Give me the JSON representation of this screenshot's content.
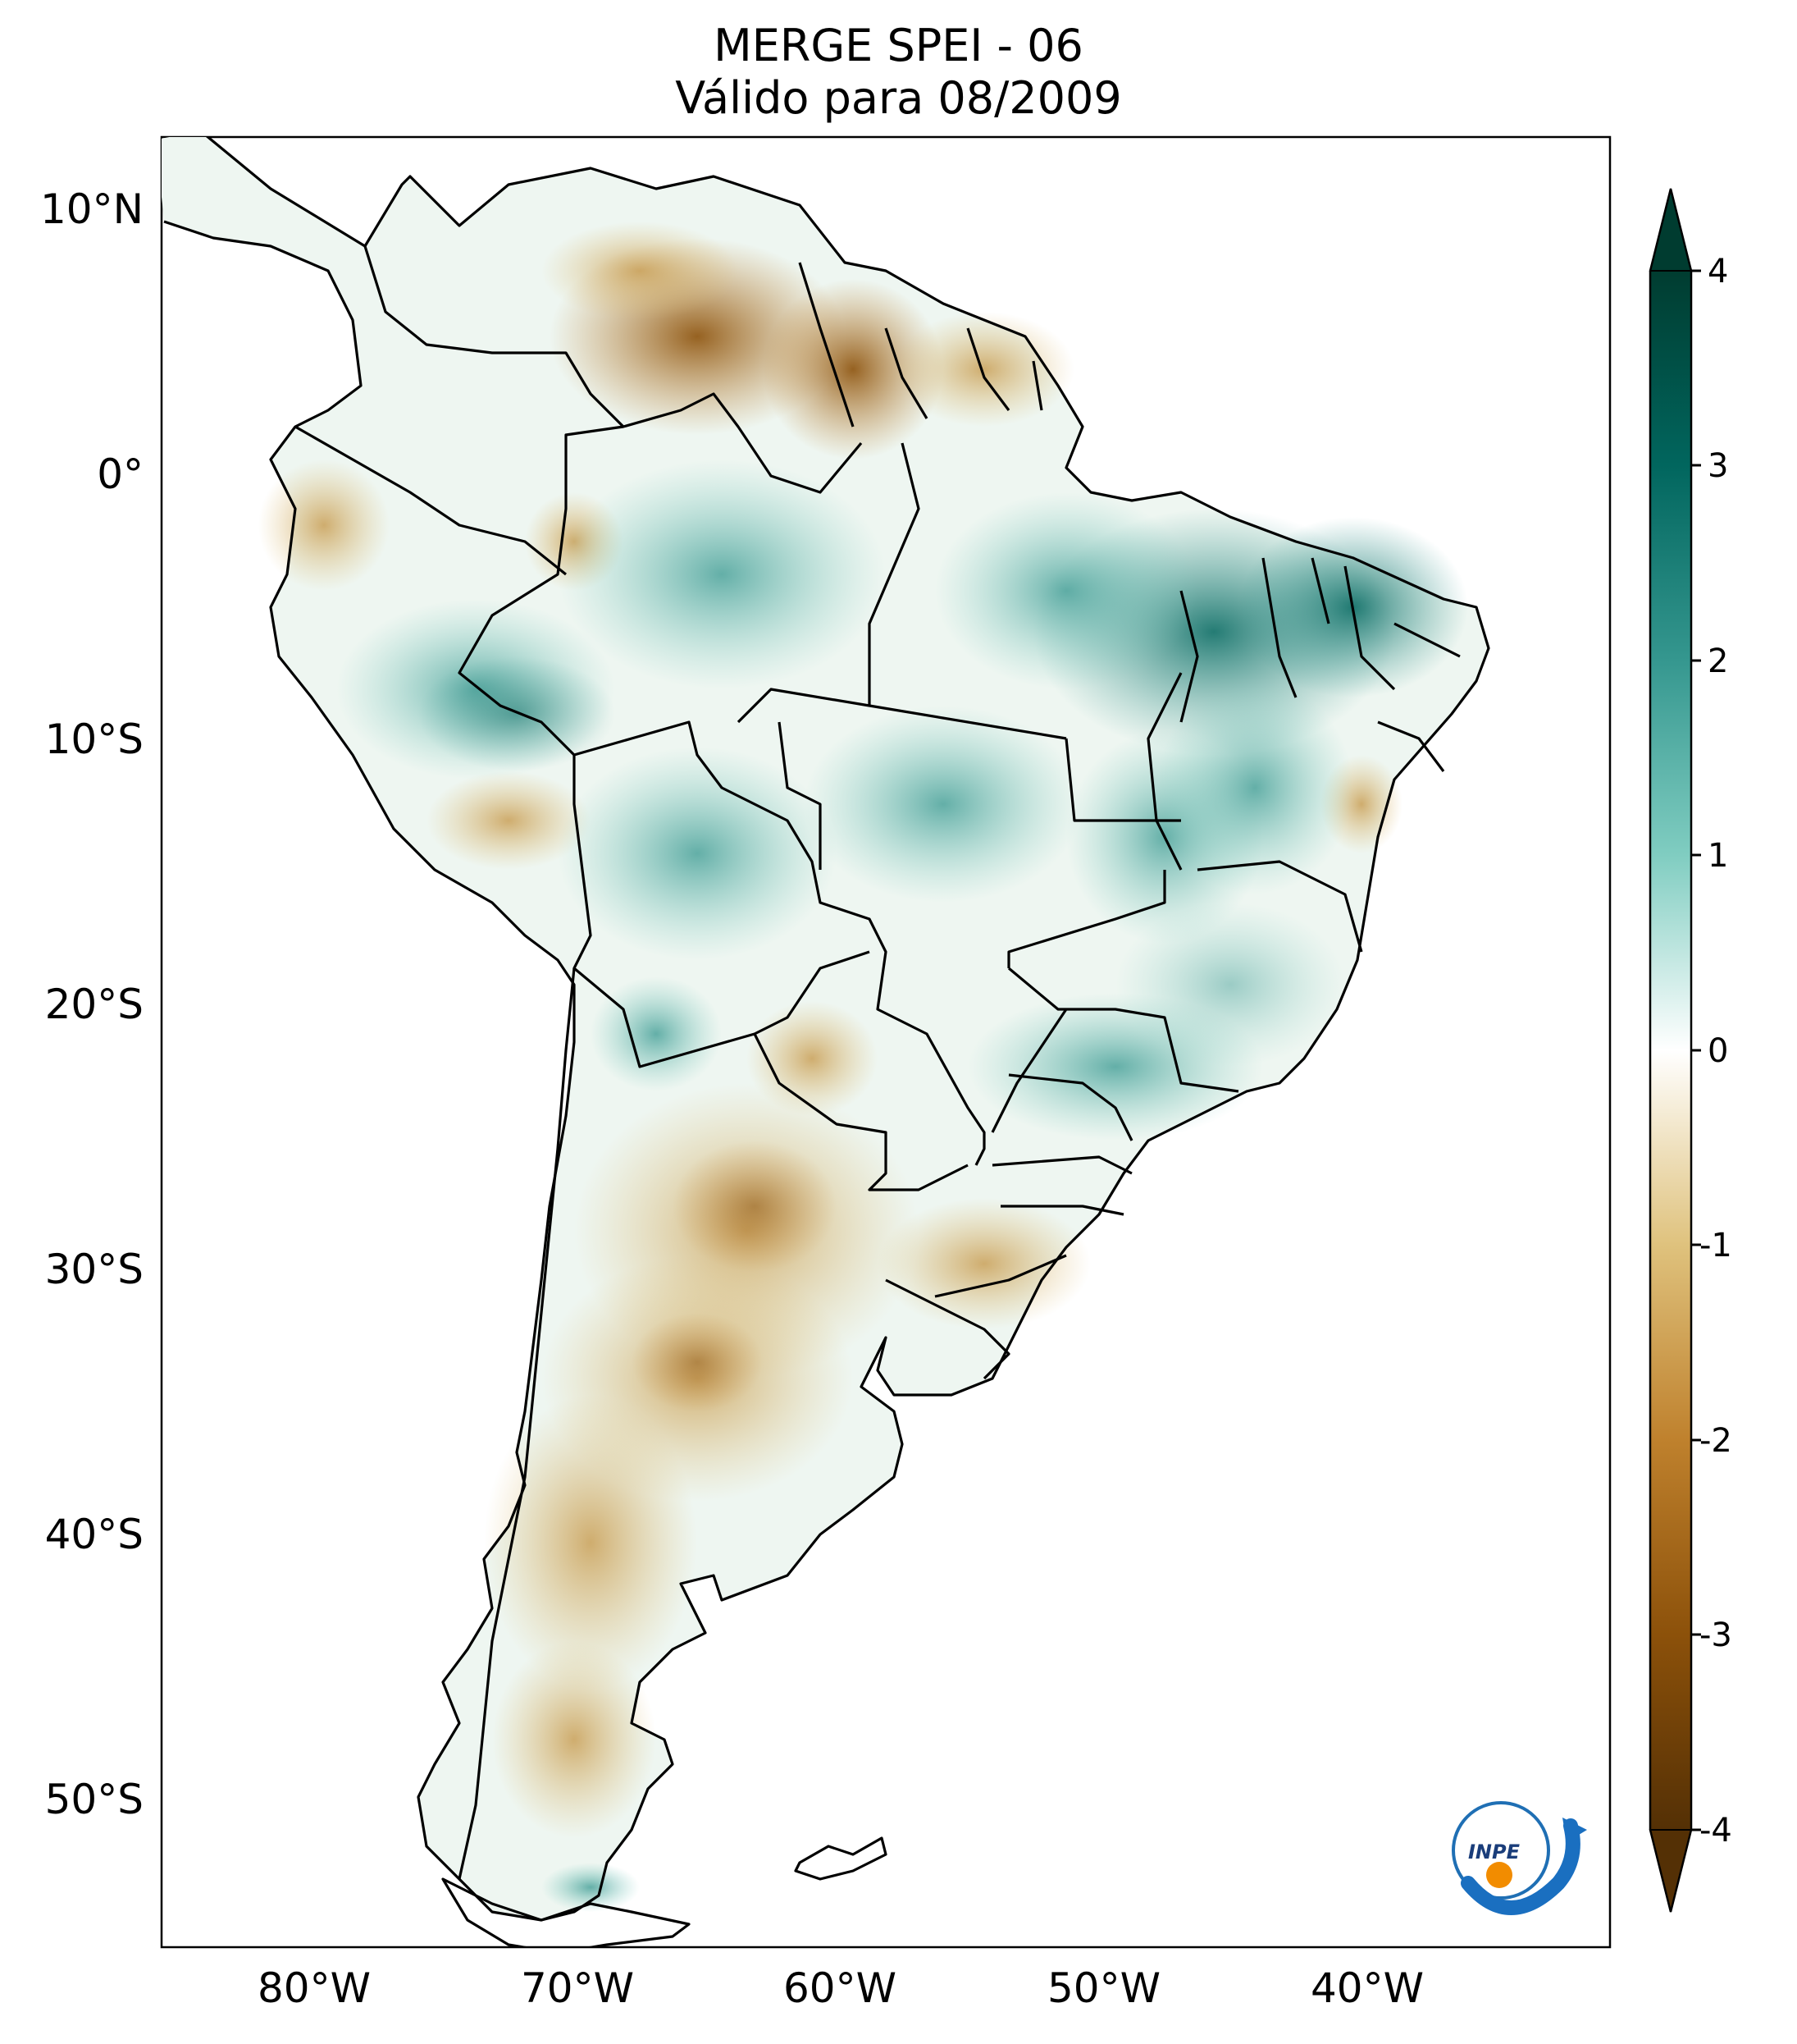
{
  "title": {
    "line1": "MERGE   SPEI - 06",
    "line2": "Válido para 08/2009"
  },
  "map": {
    "region": "South America",
    "variable": "SPEI - 06",
    "dataset": "MERGE",
    "lat_ticks": [
      "10°N",
      "0°",
      "10°S",
      "20°S",
      "30°S",
      "40°S",
      "50°S"
    ],
    "lon_ticks": [
      "80°W",
      "70°W",
      "60°W",
      "50°W",
      "40°W"
    ]
  },
  "colorbar": {
    "ticks": [
      "4",
      "3",
      "2",
      "1",
      "0",
      "-1",
      "-2",
      "-3",
      "-4"
    ],
    "min": -4,
    "max": 4,
    "colors": {
      "low": "#543005",
      "mid_low": "#c79a4d",
      "neutral": "#ffffff",
      "mid_high": "#5fb1a5",
      "high": "#003c30"
    }
  },
  "logo": {
    "text": "INPE"
  }
}
